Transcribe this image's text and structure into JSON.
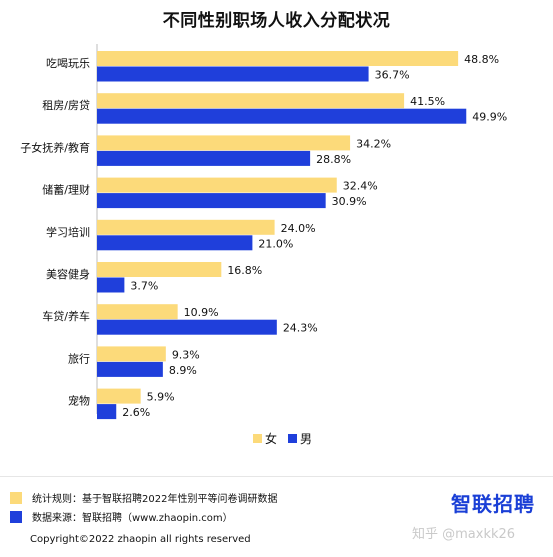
{
  "chart_data": {
    "type": "bar",
    "orientation": "horizontal",
    "title": "不同性别职场人收入分配状况",
    "categories": [
      "吃喝玩乐",
      "租房/房贷",
      "子女抚养/教育",
      "储蓄/理财",
      "学习培训",
      "美容健身",
      "车贷/养车",
      "旅行",
      "宠物"
    ],
    "series": [
      {
        "name": "女",
        "color": "#FCDA7A",
        "values": [
          48.8,
          41.5,
          34.2,
          32.4,
          24.0,
          16.8,
          10.9,
          9.3,
          5.9
        ]
      },
      {
        "name": "男",
        "color": "#1F3FDB",
        "values": [
          36.7,
          49.9,
          28.8,
          30.9,
          21.0,
          3.7,
          24.3,
          8.9,
          2.6
        ]
      }
    ],
    "value_suffix": "%",
    "legend_position": "bottom-center",
    "grid": false
  },
  "notes": [
    {
      "text": "统计规则：基于智联招聘2022年性别平等问卷调研数据",
      "color": "#FCDA7A"
    },
    {
      "text": "数据来源：智联招聘（www.zhaopin.com）",
      "color": "#1F3FDB"
    }
  ],
  "brand": "智联招聘",
  "watermark": "知乎 @maxkk26",
  "copyright": "Copyright©2022 zhaopin all rights reserved"
}
